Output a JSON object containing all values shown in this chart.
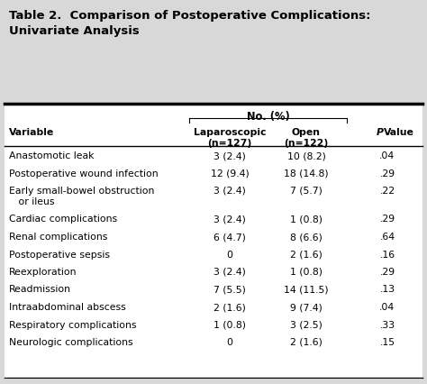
{
  "title_line1": "Table 2.  Comparison of Postoperative Complications:",
  "title_line2": "Univariate Analysis",
  "header_group": "No. (%)",
  "rows": [
    [
      "Anastomotic leak",
      "3 (2.4)",
      "10 (8.2)",
      ".04"
    ],
    [
      "Postoperative wound infection",
      "12 (9.4)",
      "18 (14.8)",
      ".29"
    ],
    [
      "Early small-bowel obstruction\n   or ileus",
      "3 (2.4)",
      "7 (5.7)",
      ".22"
    ],
    [
      "Cardiac complications",
      "3 (2.4)",
      "1 (0.8)",
      ".29"
    ],
    [
      "Renal complications",
      "6 (4.7)",
      "8 (6.6)",
      ".64"
    ],
    [
      "Postoperative sepsis",
      "0",
      "2 (1.6)",
      ".16"
    ],
    [
      "Reexploration",
      "3 (2.4)",
      "1 (0.8)",
      ".29"
    ],
    [
      "Readmission",
      "7 (5.5)",
      "14 (11.5)",
      ".13"
    ],
    [
      "Intraabdominal abscess",
      "2 (1.6)",
      "9 (7.4)",
      ".04"
    ],
    [
      "Respiratory complications",
      "1 (0.8)",
      "3 (2.5)",
      ".33"
    ],
    [
      "Neurologic complications",
      "0",
      "2 (1.6)",
      ".15"
    ]
  ],
  "bg_color": "#d8d8d8",
  "table_bg": "#ffffff",
  "font_size": 7.8,
  "title_font_size": 9.5
}
